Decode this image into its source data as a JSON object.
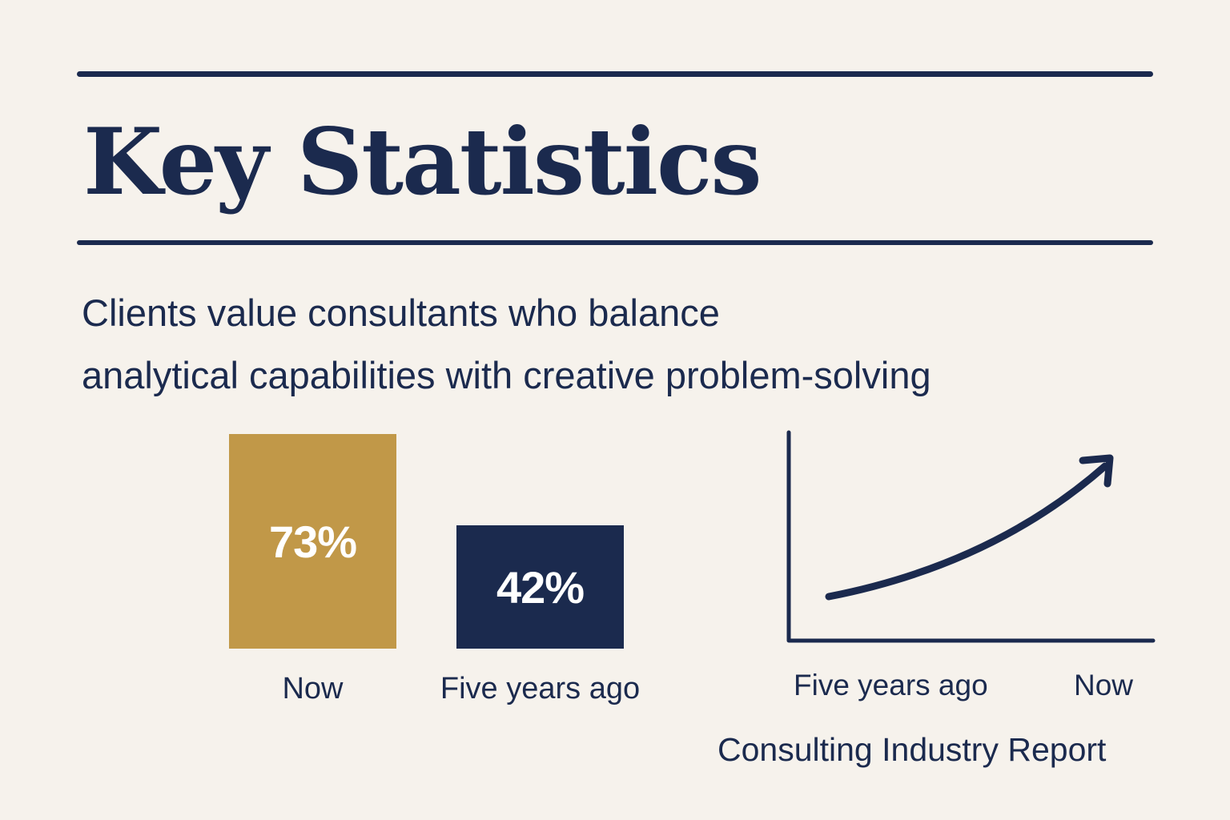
{
  "title": "Key Statistics",
  "subtitle_line1": "Clients value consultants who balance",
  "subtitle_line2": "analytical capabilities with creative problem-solving",
  "colors": {
    "background": "#f6f2ec",
    "navy": "#1b2a4e",
    "gold": "#c19848"
  },
  "chart_data": [
    {
      "type": "bar",
      "categories": [
        "Now",
        "Five years ago"
      ],
      "values": [
        73,
        42
      ],
      "value_labels": [
        "73%",
        "42%"
      ],
      "colors": [
        "#c19848",
        "#1b2a4e"
      ],
      "title": "",
      "xlabel": "",
      "ylabel": "",
      "grid": false
    },
    {
      "type": "line",
      "x": [
        "Five years ago",
        "Now"
      ],
      "trend": "increasing",
      "arrow_at_end": true,
      "title": "",
      "grid": false
    }
  ],
  "source": "Consulting Industry Report"
}
